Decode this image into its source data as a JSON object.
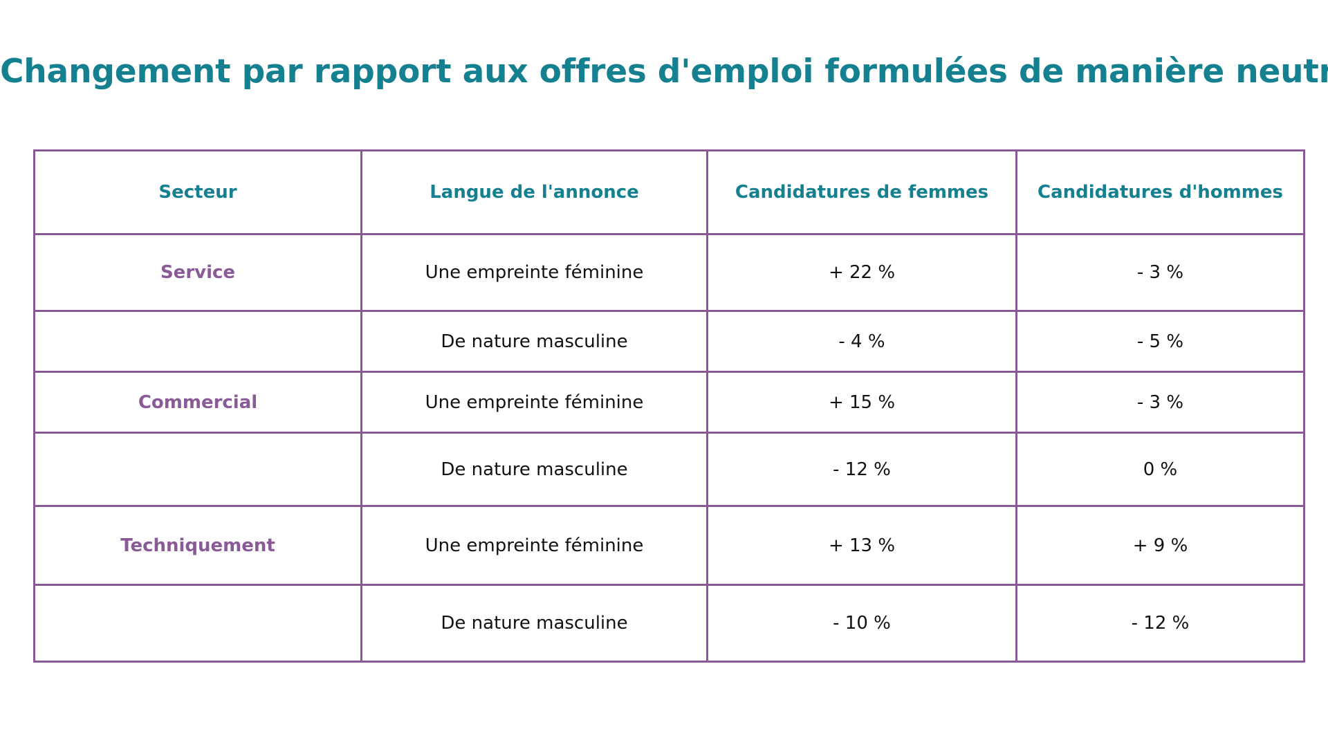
{
  "title": "Changement par rapport aux offres d'emploi formulées de manière neutre",
  "colors": {
    "title": "#15808f",
    "header_text": "#15808f",
    "sector_text": "#8a5a97",
    "border": "#8a5a97",
    "body_text": "#111111",
    "background": "#ffffff"
  },
  "table": {
    "headers": [
      "Secteur",
      "Langue de l'annonce",
      "Candidatures de femmes",
      "Candidatures d'hommes"
    ],
    "rows": [
      {
        "sector": "Service",
        "language": "Une empreinte féminine",
        "women": "+ 22 %",
        "men": "- 3 %"
      },
      {
        "sector": "",
        "language": "De nature masculine",
        "women": "- 4 %",
        "men": "- 5 %"
      },
      {
        "sector": "Commercial",
        "language": "Une empreinte féminine",
        "women": "+ 15 %",
        "men": "- 3 %"
      },
      {
        "sector": "",
        "language": "De nature masculine",
        "women": "- 12 %",
        "men": "0 %"
      },
      {
        "sector": "Techniquement",
        "language": "Une empreinte féminine",
        "women": "+ 13 %",
        "men": "+ 9 %"
      },
      {
        "sector": "",
        "language": "De nature masculine",
        "women": "- 10 %",
        "men": "- 12 %"
      }
    ]
  }
}
